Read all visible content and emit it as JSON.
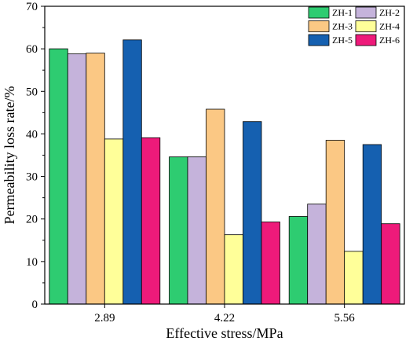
{
  "chart_data": {
    "type": "bar",
    "title": "",
    "xlabel": "Effective stress/MPa",
    "ylabel": "Permeability loss rate/%",
    "categories": [
      "2.89",
      "4.22",
      "5.56"
    ],
    "ylim": [
      0,
      70
    ],
    "yticks": [
      0,
      10,
      20,
      30,
      40,
      50,
      60,
      70
    ],
    "grid": false,
    "legend": {
      "position": "top-right",
      "columns": 2
    },
    "series": [
      {
        "name": "ZH-1",
        "color": "#2ecc71",
        "values": [
          60.0,
          34.6,
          20.6
        ]
      },
      {
        "name": "ZH-2",
        "color": "#c5b3db",
        "values": [
          58.8,
          34.6,
          23.5
        ]
      },
      {
        "name": "ZH-3",
        "color": "#fbc884",
        "values": [
          59.0,
          45.8,
          38.5
        ]
      },
      {
        "name": "ZH-4",
        "color": "#ffff99",
        "values": [
          38.8,
          16.3,
          12.4
        ]
      },
      {
        "name": "ZH-5",
        "color": "#1560b0",
        "values": [
          62.1,
          42.9,
          37.5
        ]
      },
      {
        "name": "ZH-6",
        "color": "#ee1a7a",
        "values": [
          39.1,
          19.3,
          18.9
        ]
      }
    ]
  }
}
